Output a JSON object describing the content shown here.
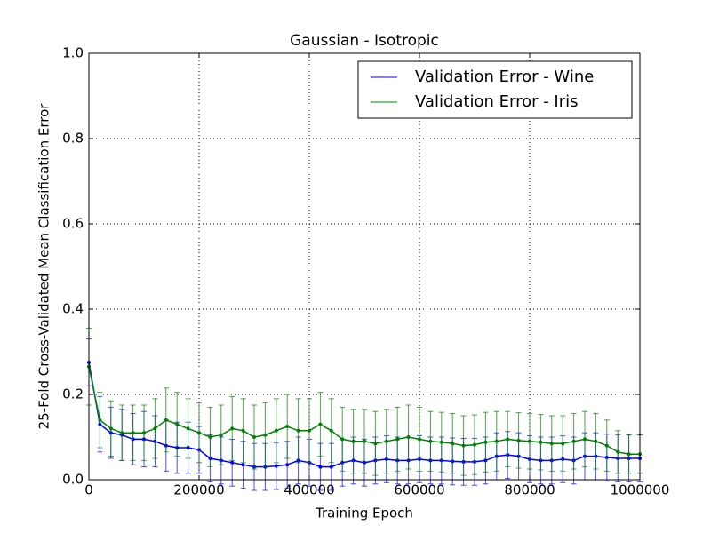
{
  "chart_data": {
    "type": "errorbar",
    "title": "Gaussian - Isotropic",
    "x_label": "Training Epoch",
    "y_label": "25-Fold Cross-Validated Mean Classification Error",
    "x": [
      0,
      20000,
      40000,
      60000,
      80000,
      100000,
      120000,
      140000,
      160000,
      180000,
      200000,
      220000,
      240000,
      260000,
      280000,
      300000,
      320000,
      340000,
      360000,
      380000,
      400000,
      420000,
      440000,
      460000,
      480000,
      500000,
      520000,
      540000,
      560000,
      580000,
      600000,
      620000,
      640000,
      660000,
      680000,
      700000,
      720000,
      740000,
      760000,
      780000,
      800000,
      820000,
      840000,
      860000,
      880000,
      900000,
      920000,
      940000,
      960000,
      980000,
      1000000
    ],
    "series": [
      {
        "name": "Validation Error - Wine",
        "color": "#0000ff",
        "values": [
          0.275,
          0.13,
          0.11,
          0.105,
          0.095,
          0.095,
          0.09,
          0.08,
          0.075,
          0.075,
          0.07,
          0.05,
          0.045,
          0.04,
          0.035,
          0.03,
          0.03,
          0.032,
          0.035,
          0.045,
          0.04,
          0.03,
          0.03,
          0.04,
          0.045,
          0.04,
          0.045,
          0.048,
          0.045,
          0.045,
          0.048,
          0.045,
          0.045,
          0.043,
          0.042,
          0.042,
          0.045,
          0.055,
          0.058,
          0.055,
          0.048,
          0.045,
          0.045,
          0.048,
          0.045,
          0.055,
          0.055,
          0.052,
          0.05,
          0.05,
          0.05
        ],
        "errors": [
          0.055,
          0.065,
          0.06,
          0.06,
          0.06,
          0.065,
          0.06,
          0.06,
          0.06,
          0.06,
          0.055,
          0.055,
          0.055,
          0.055,
          0.055,
          0.055,
          0.055,
          0.055,
          0.055,
          0.055,
          0.055,
          0.055,
          0.055,
          0.055,
          0.055,
          0.055,
          0.055,
          0.055,
          0.055,
          0.055,
          0.055,
          0.055,
          0.055,
          0.055,
          0.055,
          0.055,
          0.055,
          0.055,
          0.055,
          0.055,
          0.055,
          0.055,
          0.055,
          0.055,
          0.055,
          0.055,
          0.055,
          0.055,
          0.055,
          0.055,
          0.055
        ]
      },
      {
        "name": "Validation Error - Iris",
        "color": "#008000",
        "values": [
          0.265,
          0.14,
          0.12,
          0.11,
          0.11,
          0.11,
          0.12,
          0.14,
          0.13,
          0.12,
          0.11,
          0.1,
          0.105,
          0.12,
          0.115,
          0.1,
          0.105,
          0.115,
          0.125,
          0.115,
          0.115,
          0.13,
          0.115,
          0.095,
          0.09,
          0.09,
          0.085,
          0.09,
          0.095,
          0.1,
          0.095,
          0.09,
          0.088,
          0.085,
          0.08,
          0.082,
          0.088,
          0.09,
          0.095,
          0.092,
          0.09,
          0.088,
          0.085,
          0.085,
          0.09,
          0.095,
          0.09,
          0.08,
          0.065,
          0.06,
          0.06
        ],
        "errors": [
          0.09,
          0.065,
          0.065,
          0.065,
          0.065,
          0.065,
          0.07,
          0.075,
          0.075,
          0.07,
          0.07,
          0.07,
          0.07,
          0.075,
          0.075,
          0.075,
          0.075,
          0.075,
          0.075,
          0.075,
          0.075,
          0.075,
          0.075,
          0.075,
          0.075,
          0.075,
          0.075,
          0.075,
          0.075,
          0.075,
          0.075,
          0.07,
          0.07,
          0.07,
          0.07,
          0.07,
          0.07,
          0.07,
          0.065,
          0.065,
          0.065,
          0.065,
          0.065,
          0.065,
          0.065,
          0.065,
          0.065,
          0.06,
          0.05,
          0.045,
          0.045
        ]
      }
    ],
    "xlim": [
      0,
      1000000
    ],
    "xticks": [
      0,
      200000,
      400000,
      600000,
      800000,
      1000000
    ],
    "ylim": [
      0,
      1
    ],
    "yticks": [
      {
        "value": 0,
        "label": "0.0"
      },
      {
        "value": 0.2,
        "label": "0.2"
      },
      {
        "value": 0.4,
        "label": "0.4"
      },
      {
        "value": 0.6,
        "label": "0.6"
      },
      {
        "value": 0.8,
        "label": "0.8"
      },
      {
        "value": 1,
        "label": "1.0"
      }
    ],
    "grid": true,
    "legend": "upper right"
  }
}
